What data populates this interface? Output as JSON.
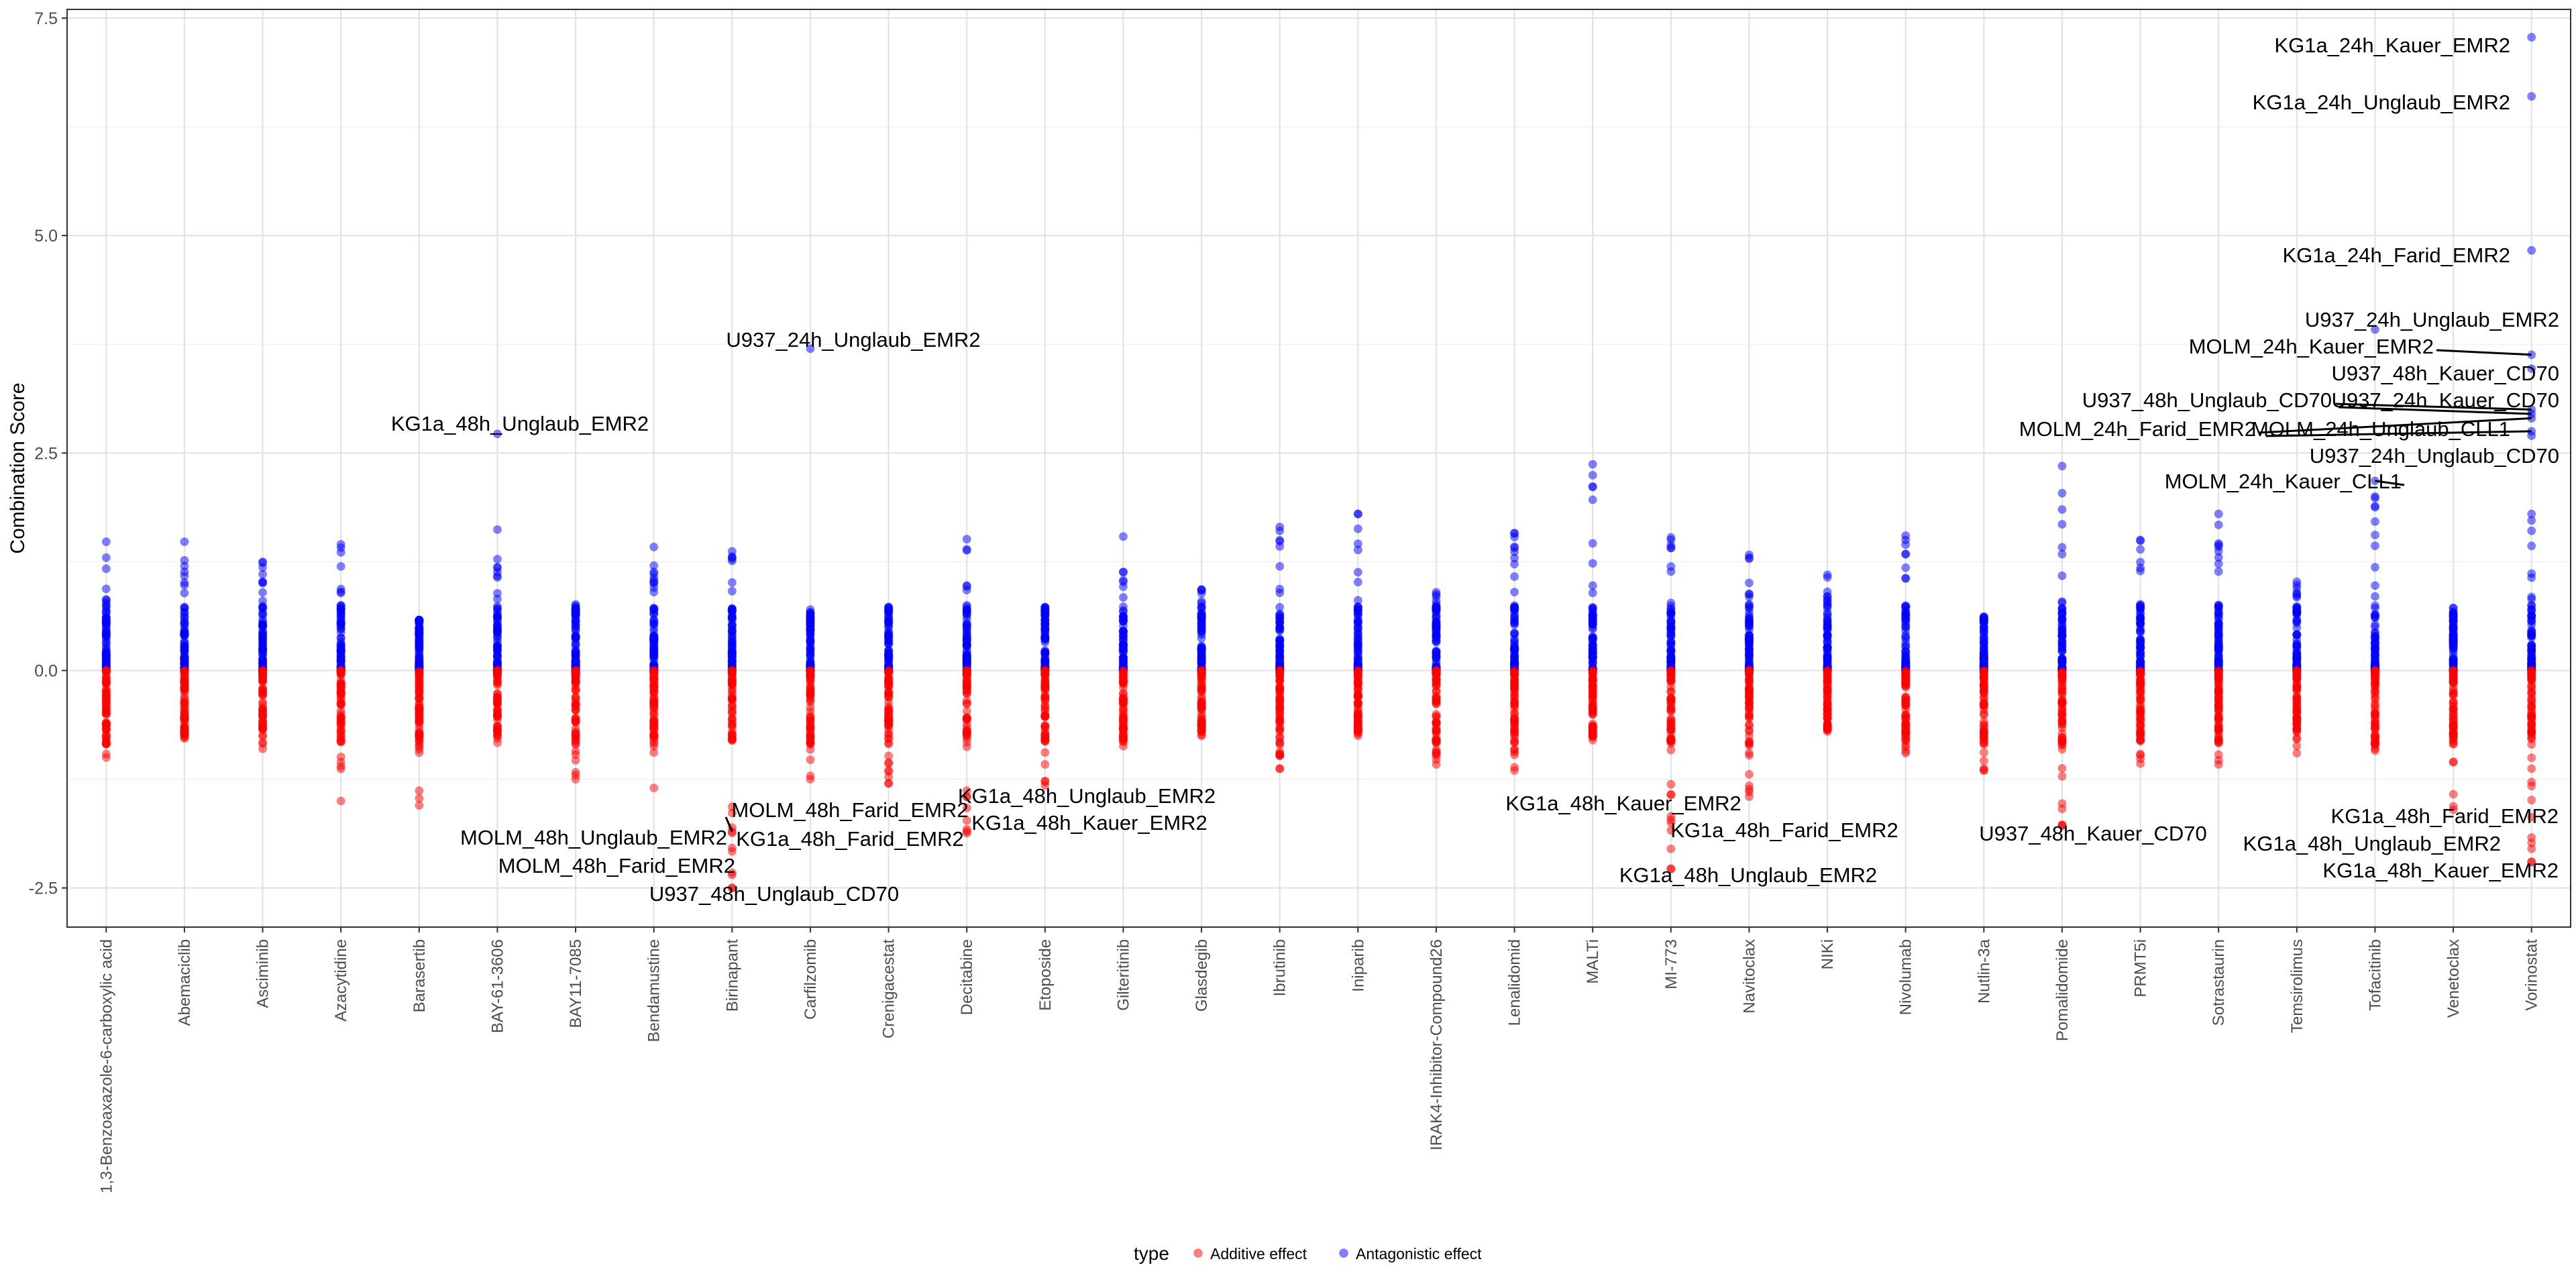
{
  "chart_data": {
    "type": "scatter",
    "title": "",
    "xlabel": "",
    "ylabel": "Combination Score",
    "ylim": [
      -2.95,
      7.6
    ],
    "yticks": [
      "-2.5",
      "0.0",
      "2.5",
      "5.0",
      "7.5"
    ],
    "grid": true,
    "legend_position": "bottom",
    "legend": {
      "title": "type",
      "entries": [
        {
          "name": "Additive effect",
          "color": "#ff0000"
        },
        {
          "name": "Antagonistic effect",
          "color": "#0000ff"
        }
      ]
    },
    "categories": [
      "1,3-Benzoaxazole-6-carboxylic acid",
      "Abemaciclib",
      "Asciminib",
      "Azacytidine",
      "Barasertib",
      "BAY-61-3606",
      "BAY11-7085",
      "Bendamustine",
      "Birinapant",
      "Carfilzomib",
      "Crenigacestat",
      "Decitabine",
      "Etoposide",
      "Gilteritinib",
      "Glasdegib",
      "Ibrutinib",
      "Iniparib",
      "IRAK4-Inhibitor-Compound26",
      "Lenalidomid",
      "MALTi",
      "MI-773",
      "Navitoclax",
      "NIKi",
      "Nivolumab",
      "Nutlin-3a",
      "Pomalidomide",
      "PRMT5i",
      "Sotrastaurin",
      "Temsirolimus",
      "Tofacitinib",
      "Venetoclax",
      "Vorinostat"
    ],
    "ranges": {
      "antagonistic_max": [
        1.48,
        1.48,
        1.25,
        1.45,
        0.58,
        1.62,
        0.76,
        1.42,
        1.37,
        0.7,
        0.73,
        1.51,
        0.73,
        1.54,
        0.93,
        1.65,
        1.8,
        0.9,
        1.58,
        2.37,
        1.53,
        1.33,
        1.1,
        1.55,
        0.62,
        2.35,
        1.5,
        1.8,
        1.02,
        2.0,
        0.72,
        1.8
      ],
      "additive_min": [
        -1.0,
        -0.78,
        -0.9,
        -1.5,
        -1.55,
        -0.83,
        -1.25,
        -1.35,
        -2.5,
        -1.25,
        -1.3,
        -1.87,
        -1.32,
        -0.87,
        -0.75,
        -1.13,
        -0.75,
        -1.08,
        -1.15,
        -0.8,
        -2.28,
        -1.45,
        -0.7,
        -0.95,
        -1.15,
        -1.78,
        -1.07,
        -1.08,
        -0.95,
        -0.92,
        -1.6,
        -2.2
      ]
    },
    "series": [
      {
        "name": "Antagonistic effect",
        "highlights": [
          {
            "label": "KG1a_24h_Kauer_EMR2",
            "category": "Vorinostat",
            "y": 7.28
          },
          {
            "label": "KG1a_24h_Unglaub_EMR2",
            "category": "Vorinostat",
            "y": 6.6
          },
          {
            "label": "KG1a_24h_Farid_EMR2",
            "category": "Vorinostat",
            "y": 4.83
          },
          {
            "label": "U937_24h_Unglaub_EMR2",
            "category": "Carfilzomib",
            "y": 3.7
          },
          {
            "label": "KG1a_48h_Unglaub_EMR2",
            "category": "BAY-61-3606",
            "y": 2.72
          },
          {
            "label": "U937_24h_Unglaub_EMR2",
            "category": "Tofacitinib",
            "y": 3.92
          },
          {
            "label": "MOLM_24h_Kauer_EMR2",
            "category": "Vorinostat",
            "y": 3.63
          },
          {
            "label": "U937_48h_Kauer_CD70",
            "category": "Vorinostat",
            "y": 3.47
          },
          {
            "label": "U937_48h_Unglaub_CD70",
            "category": "Vorinostat",
            "y": 3.0
          },
          {
            "label": "U937_24h_Kauer_CD70",
            "category": "Vorinostat",
            "y": 2.95
          },
          {
            "label": "MOLM_24h_Farid_EMR2",
            "category": "Vorinostat",
            "y": 2.9
          },
          {
            "label": "MOLM_24h_Unglaub_CLL1",
            "category": "Vorinostat",
            "y": 2.75
          },
          {
            "label": "U937_24h_Unglaub_CD70",
            "category": "Vorinostat",
            "y": 2.7
          },
          {
            "label": "MOLM_24h_Kauer_CLL1",
            "category": "Tofacitinib",
            "y": 2.18
          }
        ]
      },
      {
        "name": "Additive effect",
        "highlights": [
          {
            "label": "MOLM_48h_Farid_EMR2",
            "category": "Birinapant",
            "y": -1.85
          },
          {
            "label": "MOLM_48h_Unglaub_EMR2",
            "category": "Birinapant",
            "y": -2.08
          },
          {
            "label": "KG1a_48h_Farid_EMR2",
            "category": "Birinapant",
            "y": -2.04
          },
          {
            "label": "MOLM_48h_Farid_EMR2",
            "category": "Birinapant",
            "y": -2.35
          },
          {
            "label": "U937_48h_Unglaub_CD70",
            "category": "Birinapant",
            "y": -2.5
          },
          {
            "label": "KG1a_48h_Unglaub_EMR2",
            "category": "Decitabine",
            "y": -1.58
          },
          {
            "label": "KG1a_48h_Kauer_EMR2",
            "category": "Decitabine",
            "y": -1.85
          },
          {
            "label": "KG1a_48h_Kauer_EMR2",
            "category": "MI-773",
            "y": -1.75
          },
          {
            "label": "KG1a_48h_Farid_EMR2",
            "category": "MI-773",
            "y": -2.05
          },
          {
            "label": "KG1a_48h_Unglaub_EMR2",
            "category": "MI-773",
            "y": -2.28
          },
          {
            "label": "U937_48h_Kauer_CD70",
            "category": "Pomalidomide",
            "y": -1.78
          },
          {
            "label": "KG1a_48h_Farid_EMR2",
            "category": "Vorinostat",
            "y": -1.92
          },
          {
            "label": "KG1a_48h_Unglaub_EMR2",
            "category": "Vorinostat",
            "y": -2.05
          },
          {
            "label": "KG1a_48h_Kauer_EMR2",
            "category": "Vorinostat",
            "y": -2.2
          }
        ]
      }
    ],
    "annotations": [
      {
        "text": "KG1a_24h_Kauer_EMR2",
        "target": 0,
        "series": 0
      },
      {
        "text": "KG1a_24h_Unglaub_EMR2",
        "target": 1,
        "series": 0
      },
      {
        "text": "KG1a_24h_Farid_EMR2",
        "target": 2,
        "series": 0
      },
      {
        "text": "U937_24h_Unglaub_EMR2",
        "target": 3,
        "series": 0
      },
      {
        "text": "KG1a_48h_Unglaub_EMR2",
        "target": 4,
        "series": 0
      },
      {
        "text": "U937_24h_Unglaub_EMR2",
        "target": 5,
        "series": 0
      },
      {
        "text": "MOLM_24h_Kauer_EMR2",
        "target": 6,
        "series": 0
      },
      {
        "text": "U937_48h_Kauer_CD70",
        "target": 7,
        "series": 0
      },
      {
        "text": "U937_48h_Unglaub_CD70",
        "target": 8,
        "series": 0
      },
      {
        "text": "U937_24h_Kauer_CD70",
        "target": 9,
        "series": 0
      },
      {
        "text": "MOLM_24h_Farid_EMR2",
        "target": 10,
        "series": 0
      },
      {
        "text": "MOLM_24h_Unglaub_CLL1",
        "target": 11,
        "series": 0
      },
      {
        "text": "U937_24h_Unglaub_CD70",
        "target": 12,
        "series": 0
      },
      {
        "text": "MOLM_24h_Kauer_CLL1",
        "target": 13,
        "series": 0
      },
      {
        "text": "MOLM_48h_Farid_EMR2",
        "target": 0,
        "series": 1
      },
      {
        "text": "MOLM_48h_Unglaub_EMR2",
        "target": 1,
        "series": 1
      },
      {
        "text": "KG1a_48h_Farid_EMR2",
        "target": 2,
        "series": 1
      },
      {
        "text": "MOLM_48h_Farid_EMR2",
        "target": 3,
        "series": 1
      },
      {
        "text": "U937_48h_Unglaub_CD70",
        "target": 4,
        "series": 1
      },
      {
        "text": "KG1a_48h_Unglaub_EMR2",
        "target": 5,
        "series": 1
      },
      {
        "text": "KG1a_48h_Kauer_EMR2",
        "target": 6,
        "series": 1
      },
      {
        "text": "KG1a_48h_Kauer_EMR2",
        "target": 7,
        "series": 1
      },
      {
        "text": "KG1a_48h_Farid_EMR2",
        "target": 8,
        "series": 1
      },
      {
        "text": "KG1a_48h_Unglaub_EMR2",
        "target": 9,
        "series": 1
      },
      {
        "text": "U937_48h_Kauer_CD70",
        "target": 10,
        "series": 1
      },
      {
        "text": "KG1a_48h_Farid_EMR2",
        "target": 11,
        "series": 1
      },
      {
        "text": "KG1a_48h_Unglaub_EMR2",
        "target": 12,
        "series": 1
      },
      {
        "text": "KG1a_48h_Kauer_EMR2",
        "target": 13,
        "series": 1
      }
    ]
  }
}
